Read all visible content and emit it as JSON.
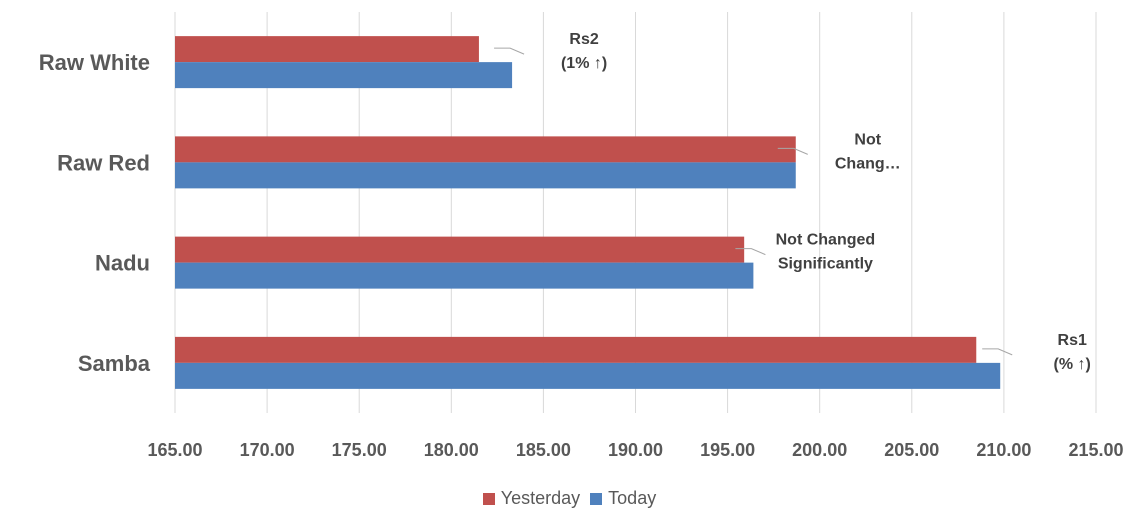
{
  "chart_data": {
    "type": "bar",
    "orientation": "horizontal",
    "categories": [
      "Raw White",
      "Raw Red",
      "Nadu",
      "Samba"
    ],
    "series": [
      {
        "name": "Yesterday",
        "color": "#c0504d",
        "values": [
          181.5,
          198.7,
          195.9,
          208.5
        ]
      },
      {
        "name": "Today",
        "color": "#4f81bd",
        "values": [
          183.3,
          198.7,
          196.4,
          209.8
        ]
      }
    ],
    "x_ticks": [
      "165.00",
      "170.00",
      "175.00",
      "180.00",
      "185.00",
      "190.00",
      "195.00",
      "200.00",
      "205.00",
      "210.00",
      "215.00"
    ],
    "xlim": [
      165,
      215
    ],
    "grid": true,
    "legend_position": "bottom",
    "data_labels": [
      {
        "category": "Raw White",
        "lines": [
          "Rs2",
          "(1% ↑)"
        ]
      },
      {
        "category": "Raw Red",
        "lines": [
          "Not",
          "Chang…"
        ]
      },
      {
        "category": "Nadu",
        "lines": [
          "Not Changed",
          "Significantly"
        ]
      },
      {
        "category": "Samba",
        "lines": [
          "Rs1",
          "(% ↑)"
        ]
      }
    ]
  }
}
